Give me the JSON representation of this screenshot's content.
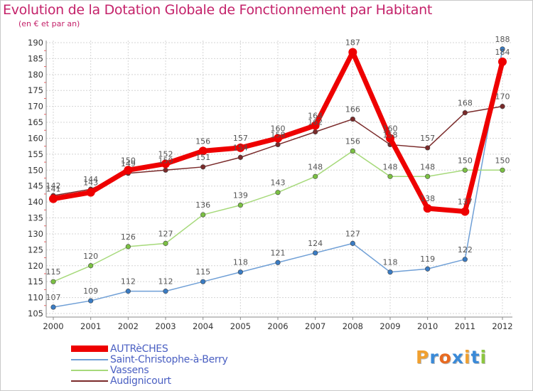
{
  "title": "Evolution de la Dotation Globale de Fonctionnement par Habitant",
  "subtitle": "(en € et par an)",
  "logo": {
    "text": "Proxiti",
    "letter_colors": [
      "#f0a030",
      "#3a8ad8",
      "#e86a20",
      "#3a8ad8",
      "#f0a030",
      "#3a8ad8",
      "#8cc63f"
    ]
  },
  "chart_data": {
    "type": "line",
    "title": "Evolution de la Dotation Globale de Fonctionnement par Habitant",
    "ylabel": "(en € et par an)",
    "xlabel": "",
    "x": [
      "2000",
      "2001",
      "2002",
      "2003",
      "2004",
      "2005",
      "2006",
      "2007",
      "2008",
      "2009",
      "2010",
      "2011",
      "2012"
    ],
    "ylim": [
      105,
      190
    ],
    "yticks": [
      105,
      110,
      115,
      120,
      125,
      130,
      135,
      140,
      145,
      150,
      155,
      160,
      165,
      170,
      175,
      180,
      185,
      190
    ],
    "grid": true,
    "legend_position": "bottom-left",
    "series": [
      {
        "name": "AUTRèCHES",
        "color": "#ee0000",
        "values": [
          141,
          143,
          150,
          152,
          156,
          157,
          160,
          164,
          187,
          160,
          138,
          137,
          184
        ],
        "labels": [
          "141",
          "143",
          "150",
          "152",
          "156",
          "157",
          "160",
          "164",
          "187",
          "160",
          "138",
          "137",
          "184"
        ]
      },
      {
        "name": "Saint-Christophe-à-Berry",
        "color": "#6f9fd6",
        "values": [
          107,
          109,
          112,
          112,
          115,
          118,
          121,
          124,
          127,
          118,
          119,
          122,
          188
        ],
        "labels": [
          "107",
          "109",
          "112",
          "112",
          "115",
          "118",
          "121",
          "124",
          "127",
          "118",
          "119",
          "122",
          "188"
        ]
      },
      {
        "name": "Vassens",
        "color": "#a6d97a",
        "values": [
          115,
          120,
          126,
          127,
          136,
          139,
          143,
          148,
          156,
          148,
          148,
          150,
          150
        ],
        "labels": [
          "115",
          "120",
          "126",
          "127",
          "136",
          "139",
          "143",
          "148",
          "156",
          "148",
          "148",
          "150",
          "150"
        ]
      },
      {
        "name": "Audignicourt",
        "color": "#7a2a2a",
        "values": [
          142,
          144,
          149,
          150,
          151,
          154,
          158,
          162,
          166,
          158,
          157,
          168,
          170
        ],
        "labels": [
          "142",
          "144",
          "149",
          "150",
          "151",
          "154",
          "158",
          "162",
          "166",
          "158",
          "157",
          "168",
          "170"
        ]
      }
    ]
  }
}
